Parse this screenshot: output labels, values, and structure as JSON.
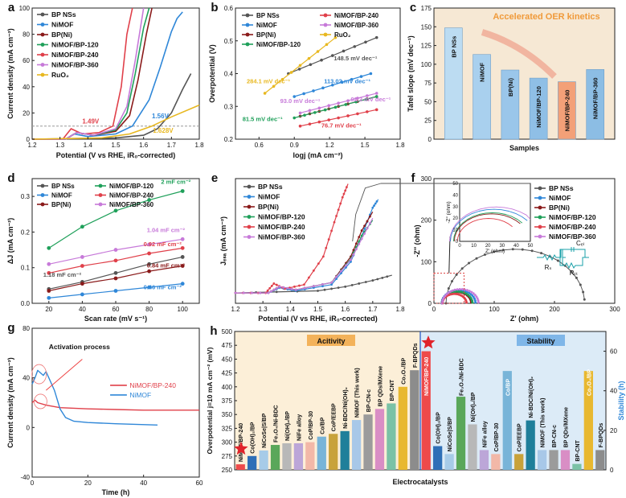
{
  "colors": {
    "bp": "#555555",
    "nimof": "#2f87d8",
    "bpni": "#8a1a1a",
    "p120": "#1fa05a",
    "p240": "#e0404a",
    "p360": "#c77ad9",
    "ruo2": "#e8b820",
    "frame": "#222222",
    "fill_a": "#fcefd8",
    "fill_b": "#dcebf7",
    "star": "#e0232a"
  },
  "chart_data": [
    {
      "panel": "a",
      "type": "line",
      "ylabel": "Current density (mA cm⁻²)",
      "xlabel": "Potential (V vs RHE, iR₀-corrected)",
      "xlim": [
        1.2,
        1.8
      ],
      "ylim": [
        0,
        100
      ],
      "xticks": [
        "1.2",
        "1.3",
        "1.4",
        "1.5",
        "1.6",
        "1.7",
        "1.8"
      ],
      "yticks": [
        "0",
        "20",
        "40",
        "60",
        "80",
        "100"
      ],
      "legend": [
        "BP NSs",
        "NiMOF",
        "BP(Ni)",
        "NiMOF/BP-120",
        "NiMOF/BP-240",
        "NiMOF/BP-360",
        "RuO₂"
      ],
      "annotations": [
        "1.49V",
        "1.56V",
        "1.628V"
      ],
      "series": [
        {
          "name": "BP NSs",
          "color": "bp",
          "x": [
            1.2,
            1.5,
            1.6,
            1.65,
            1.7,
            1.74,
            1.77
          ],
          "y": [
            0,
            1,
            3,
            8,
            20,
            38,
            50
          ]
        },
        {
          "name": "NiMOF",
          "color": "nimof",
          "x": [
            1.2,
            1.32,
            1.35,
            1.4,
            1.5,
            1.56,
            1.62,
            1.66,
            1.7,
            1.72,
            1.74
          ],
          "y": [
            0,
            0,
            4,
            2,
            4,
            10,
            30,
            55,
            82,
            92,
            97
          ]
        },
        {
          "name": "BP(Ni)",
          "color": "bpni",
          "x": [
            1.2,
            1.32,
            1.36,
            1.42,
            1.5,
            1.55,
            1.58,
            1.61,
            1.63
          ],
          "y": [
            0,
            0,
            5,
            3,
            6,
            18,
            45,
            80,
            100
          ]
        },
        {
          "name": "NiMOF/BP-120",
          "color": "p120",
          "x": [
            1.2,
            1.32,
            1.36,
            1.42,
            1.5,
            1.54,
            1.57,
            1.6,
            1.62
          ],
          "y": [
            0,
            0,
            5,
            3,
            7,
            20,
            50,
            85,
            100
          ]
        },
        {
          "name": "NiMOF/BP-240",
          "color": "p240",
          "x": [
            1.2,
            1.31,
            1.34,
            1.38,
            1.44,
            1.49,
            1.52,
            1.54,
            1.56
          ],
          "y": [
            0,
            0,
            8,
            4,
            5,
            10,
            40,
            80,
            100
          ]
        },
        {
          "name": "NiMOF/BP-360",
          "color": "p360",
          "x": [
            1.2,
            1.32,
            1.36,
            1.42,
            1.5,
            1.54,
            1.57,
            1.6
          ],
          "y": [
            0,
            0,
            5,
            3,
            8,
            25,
            60,
            100
          ]
        },
        {
          "name": "RuO₂",
          "color": "ruo2",
          "x": [
            1.2,
            1.45,
            1.55,
            1.63,
            1.7,
            1.8
          ],
          "y": [
            0,
            1,
            4,
            10,
            17,
            26
          ]
        }
      ]
    },
    {
      "panel": "b",
      "type": "line",
      "ylabel": "Overpotential (V)",
      "xlabel": "logj (mA cm⁻²)",
      "xlim": [
        0.4,
        1.8
      ],
      "ylim": [
        0.2,
        0.6
      ],
      "xticks": [
        "0.6",
        "0.9",
        "1.2",
        "1.5",
        "1.8"
      ],
      "yticks": [
        "0.2",
        "0.3",
        "0.4",
        "0.5",
        "0.6"
      ],
      "legend": [
        "BP NSs",
        "NiMOF",
        "BP(Ni)",
        "NiMOF/BP-120",
        "NiMOF/BP-240",
        "NiMOF/BP-360",
        "RuO₂"
      ],
      "annotations": [
        "148.5 mV dec⁻¹",
        "113.02 mV dec⁻¹",
        "92.3 mV dec⁻¹",
        "76.7 mV dec⁻¹",
        "93.0 mV dec⁻¹",
        "81.5 mV dec⁻¹",
        "284.1 mV dec⁻¹"
      ],
      "series": [
        {
          "name": "BP NSs",
          "color": "bp",
          "x": [
            0.85,
            1.6
          ],
          "y": [
            0.4,
            0.51
          ]
        },
        {
          "name": "NiMOF",
          "color": "nimof",
          "x": [
            0.9,
            1.55
          ],
          "y": [
            0.33,
            0.4
          ]
        },
        {
          "name": "BP(Ni)",
          "color": "bpni",
          "x": [
            0.95,
            1.6
          ],
          "y": [
            0.27,
            0.33
          ]
        },
        {
          "name": "NiMOF/BP-120",
          "color": "p120",
          "x": [
            0.9,
            1.6
          ],
          "y": [
            0.265,
            0.33
          ]
        },
        {
          "name": "NiMOF/BP-240",
          "color": "p240",
          "x": [
            0.95,
            1.6
          ],
          "y": [
            0.24,
            0.29
          ]
        },
        {
          "name": "NiMOF/BP-360",
          "color": "p360",
          "x": [
            0.95,
            1.6
          ],
          "y": [
            0.28,
            0.34
          ]
        },
        {
          "name": "RuO₂",
          "color": "ruo2",
          "x": [
            0.65,
            1.25
          ],
          "y": [
            0.34,
            0.51
          ]
        }
      ]
    },
    {
      "panel": "c",
      "type": "bar",
      "ylabel": "Tafel slope (mV dec⁻¹)",
      "xlabel": "Samples",
      "title": "Accelerated OER kinetics",
      "ylim": [
        0,
        175
      ],
      "yticks": [
        "0",
        "25",
        "50",
        "75",
        "100",
        "125",
        "150",
        "175"
      ],
      "categories": [
        "BP NSs",
        "NiMOF",
        "BP(Ni)",
        "NiMOF/BP-120",
        "NiMOF/BP-240",
        "NiMOF/BP-360"
      ],
      "values": [
        148.5,
        113.02,
        92.3,
        81.5,
        76.7,
        93.0
      ]
    },
    {
      "panel": "d",
      "type": "line",
      "ylabel": "ΔJ (mA cm⁻²)",
      "xlabel": "Scan rate (mV s⁻¹)",
      "xlim": [
        10,
        110
      ],
      "ylim": [
        0,
        0.35
      ],
      "xticks": [
        "20",
        "40",
        "60",
        "80",
        "100"
      ],
      "yticks": [
        "0.0",
        "0.1",
        "0.2",
        "0.3"
      ],
      "legend": [
        "BP NSs",
        "NiMOF",
        "BP(Ni)",
        "NiMOF/BP-120",
        "NiMOF/BP-240",
        "NiMOF/BP-360"
      ],
      "annotations": [
        "2 mF cm⁻²",
        "1.04 mF cm⁻²",
        "0.92 mF cm⁻²",
        "1.18 mF cm⁻²",
        "0.84 mF cm⁻²",
        "0.46 mF cm⁻²"
      ],
      "x": [
        20,
        40,
        60,
        80,
        100
      ],
      "series": [
        {
          "name": "BP NSs",
          "color": "bp",
          "values": [
            0.04,
            0.06,
            0.085,
            0.11,
            0.13
          ]
        },
        {
          "name": "NiMOF",
          "color": "nimof",
          "values": [
            0.015,
            0.025,
            0.035,
            0.045,
            0.055
          ]
        },
        {
          "name": "BP(Ni)",
          "color": "bpni",
          "values": [
            0.035,
            0.055,
            0.07,
            0.09,
            0.105
          ]
        },
        {
          "name": "NiMOF/BP-120",
          "color": "p120",
          "values": [
            0.155,
            0.215,
            0.26,
            0.29,
            0.315
          ]
        },
        {
          "name": "NiMOF/BP-240",
          "color": "p240",
          "values": [
            0.085,
            0.105,
            0.12,
            0.14,
            0.155
          ]
        },
        {
          "name": "NiMOF/BP-360",
          "color": "p360",
          "values": [
            0.11,
            0.13,
            0.15,
            0.165,
            0.18
          ]
        }
      ]
    },
    {
      "panel": "e",
      "type": "line",
      "ylabel": "Jₑₛₐ (mA cm⁻²)",
      "xlabel": "Potential (V vs RHE, iR₀-corrected)",
      "xlim": [
        1.2,
        1.8
      ],
      "xticks": [
        "1.2",
        "1.3",
        "1.4",
        "1.5",
        "1.6",
        "1.7",
        "1.8"
      ],
      "legend": [
        "BP NSs",
        "NiMOF",
        "BP(Ni)",
        "NiMOF/BP-120",
        "NiMOF/BP-240",
        "NiMOF/BP-360"
      ],
      "series": [
        {
          "name": "BP NSs",
          "color": "bp",
          "x": [
            1.2,
            1.5,
            1.6,
            1.7,
            1.77
          ],
          "y": [
            0,
            0.02,
            0.06,
            0.12,
            0.17
          ]
        },
        {
          "name": "NiMOF",
          "color": "nimof",
          "x": [
            1.2,
            1.32,
            1.36,
            1.42,
            1.55,
            1.62,
            1.66,
            1.7,
            1.72
          ],
          "y": [
            0,
            0,
            0.05,
            0.02,
            0.08,
            0.3,
            0.55,
            0.82,
            0.9
          ]
        },
        {
          "name": "BP(Ni)",
          "color": "bpni",
          "x": [
            1.2,
            1.32,
            1.36,
            1.42,
            1.55,
            1.62,
            1.66,
            1.7
          ],
          "y": [
            0,
            0,
            0.06,
            0.03,
            0.1,
            0.35,
            0.6,
            0.78
          ]
        },
        {
          "name": "NiMOF/BP-120",
          "color": "p120",
          "x": [
            1.2,
            1.32,
            1.36,
            1.42,
            1.55,
            1.62,
            1.66,
            1.7
          ],
          "y": [
            0,
            0,
            0.06,
            0.03,
            0.1,
            0.33,
            0.55,
            0.7
          ]
        },
        {
          "name": "NiMOF/BP-240",
          "color": "p240",
          "x": [
            1.2,
            1.31,
            1.34,
            1.38,
            1.45,
            1.52,
            1.56,
            1.59,
            1.61
          ],
          "y": [
            0,
            0,
            0.09,
            0.04,
            0.08,
            0.35,
            0.68,
            0.92,
            1.05
          ]
        },
        {
          "name": "NiMOF/BP-360",
          "color": "p360",
          "x": [
            1.2,
            1.32,
            1.36,
            1.42,
            1.55,
            1.62,
            1.66,
            1.7
          ],
          "y": [
            0,
            0,
            0.06,
            0.03,
            0.1,
            0.32,
            0.52,
            0.72
          ]
        }
      ]
    },
    {
      "panel": "f",
      "type": "scatter",
      "ylabel": "-Z″ (ohm)",
      "xlabel": "Z′ (ohm)",
      "xlim": [
        0,
        300
      ],
      "ylim": [
        0,
        300
      ],
      "xticks": [
        "0",
        "100",
        "200",
        "300"
      ],
      "yticks": [
        "0",
        "100",
        "200",
        "300"
      ],
      "legend": [
        "BP NSs",
        "NiMOF",
        "BP(Ni)",
        "NiMOF/BP-120",
        "NiMOF/BP-240",
        "NiMOF/BP-360"
      ],
      "inset": {
        "xlabel": "Z′ (ohm)",
        "ylabel": "-Z″ (ohm)",
        "xticks": [
          "0",
          "10",
          "20",
          "30",
          "40",
          "50"
        ],
        "yticks": [
          "0",
          "10",
          "20",
          "30",
          "40",
          "50"
        ]
      },
      "circuit_labels": [
        "Rₛ",
        "Rₜₜ",
        "Cₑₗ"
      ],
      "series": [
        {
          "name": "BP NSs",
          "color": "bp",
          "center": 125,
          "radius": 115
        },
        {
          "name": "NiMOF",
          "color": "nimof",
          "center": 35,
          "radius": 28
        },
        {
          "name": "BP(Ni)",
          "color": "bpni",
          "center": 32,
          "radius": 24
        },
        {
          "name": "NiMOF/BP-120",
          "color": "p120",
          "center": 33,
          "radius": 25
        },
        {
          "name": "NiMOF/BP-240",
          "color": "p240",
          "center": 28,
          "radius": 20
        },
        {
          "name": "NiMOF/BP-360",
          "color": "p360",
          "center": 38,
          "radius": 30
        }
      ]
    },
    {
      "panel": "g",
      "type": "line",
      "ylabel": "Current density (mA cm⁻²)",
      "xlabel": "Time (h)",
      "xlim": [
        0,
        60
      ],
      "ylim": [
        -40,
        80
      ],
      "xticks": [
        "0",
        "20",
        "40",
        "60"
      ],
      "yticks": [
        "-40",
        "0",
        "40",
        "80"
      ],
      "legend": [
        "NiMOF/BP-240",
        "NiMOF"
      ],
      "annotations": [
        "Activation process"
      ],
      "series": [
        {
          "name": "NiMOF/BP-240",
          "color": "p240",
          "x": [
            0,
            1,
            2,
            5,
            10,
            20,
            30,
            40,
            50,
            60
          ],
          "y": [
            20,
            22,
            20,
            18,
            16,
            15,
            14.5,
            14,
            14,
            14
          ]
        },
        {
          "name": "NiMOF",
          "color": "nimof",
          "x": [
            0,
            1,
            2,
            3,
            4,
            5,
            6,
            8,
            10,
            12,
            15,
            20,
            30,
            45
          ],
          "y": [
            35,
            40,
            46,
            44,
            42,
            45,
            40,
            30,
            15,
            8,
            5,
            4,
            3,
            2
          ]
        }
      ]
    },
    {
      "panel": "h",
      "type": "bar",
      "ylabel": "Overpotential j=10 mA cm⁻² (mV)",
      "y2label": "Stability (h)",
      "xlabel": "Electrocatalysts",
      "ylim": [
        250,
        500
      ],
      "yticks": [
        "250",
        "275",
        "300",
        "325",
        "350",
        "375",
        "400",
        "425",
        "450",
        "475",
        "500"
      ],
      "y2lim": [
        0,
        70
      ],
      "y2ticks": [
        "0",
        "20",
        "40",
        "60"
      ],
      "activity_label": "Acitivity",
      "stability_label": "Stability",
      "categories": [
        "NiMOF/BP-240",
        "Co(OH)₂/BP",
        "NiCoSe|S/BP",
        "Fe₃O₄/Ni-BDC",
        "Ni(OH)₂/BP",
        "NiFe alloy",
        "CoP/BP-30",
        "Co/BP",
        "CoP/EEBP",
        "Ni-BDC/Ni(OH)₂",
        "NiMOF (This work)",
        "BP-CN-c",
        "BP QDs/MXene",
        "BP-CNT",
        "Co₃O₄/BP",
        "F-BPQDs"
      ],
      "overpotential": [
        260,
        275,
        285,
        295,
        298,
        298,
        300,
        310,
        315,
        320,
        340,
        350,
        360,
        370,
        400,
        430
      ],
      "stability": [
        60,
        12,
        8,
        37,
        23,
        10,
        8,
        50,
        8,
        25,
        10,
        10,
        10,
        3,
        50,
        10
      ]
    }
  ]
}
